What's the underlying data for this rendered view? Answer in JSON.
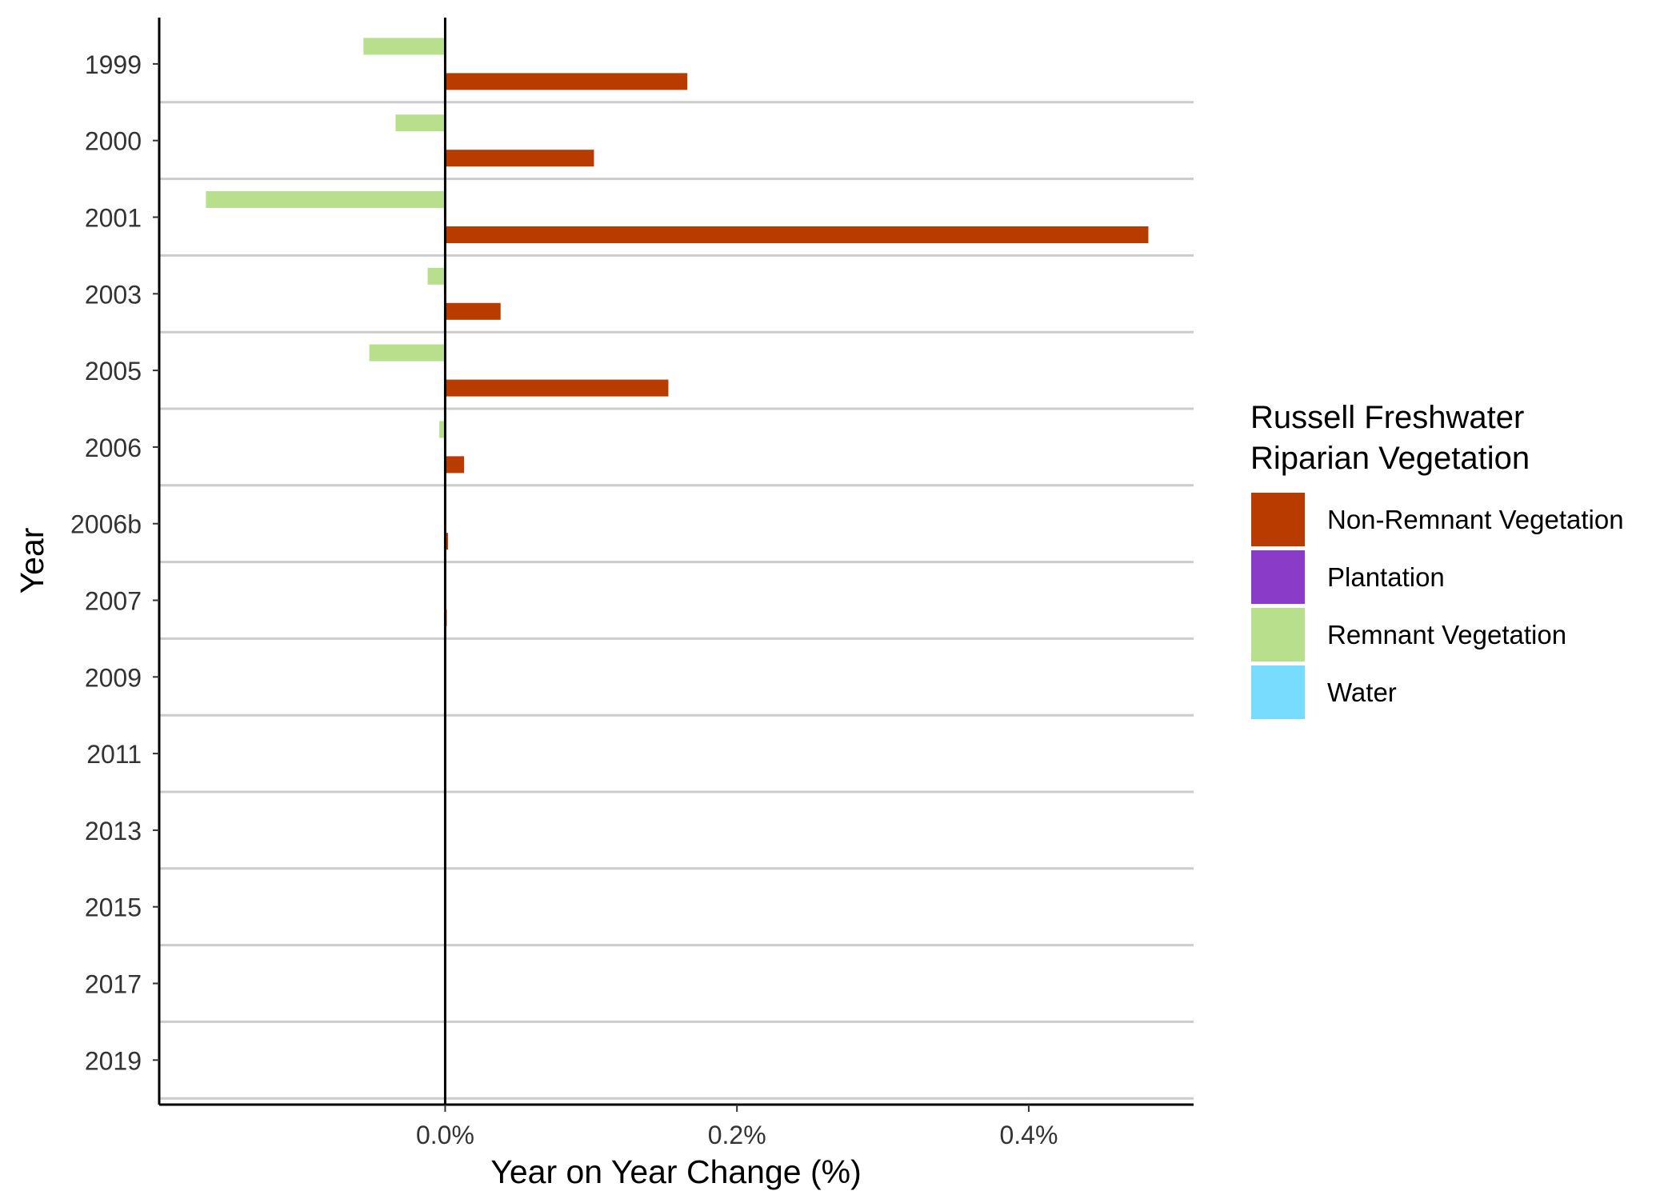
{
  "chart_data": {
    "type": "bar",
    "orientation": "horizontal",
    "title": "",
    "xlabel": "Year on Year Change (%)",
    "ylabel": "Year",
    "categories": [
      "1999",
      "2000",
      "2001",
      "2003",
      "2005",
      "2006",
      "2006b",
      "2007",
      "2009",
      "2011",
      "2013",
      "2015",
      "2017",
      "2019"
    ],
    "x_ticks": [
      0.0,
      0.2,
      0.4
    ],
    "x_tick_labels": [
      "0.0%",
      "0.2%",
      "0.4%"
    ],
    "xlim": [
      -0.196,
      0.513
    ],
    "grid": "horizontal separators between categories",
    "legend": {
      "title": "Russell Freshwater Riparian Vegetation",
      "title_lines": [
        "Russell Freshwater",
        "Riparian Vegetation"
      ],
      "placement": "right",
      "entries": [
        {
          "name": "Non-Remnant Vegetation",
          "color": "#B83C00"
        },
        {
          "name": "Plantation",
          "color": "#8A3CC8"
        },
        {
          "name": "Remnant Vegetation",
          "color": "#B8E08C"
        },
        {
          "name": "Water",
          "color": "#78DCFF"
        }
      ]
    },
    "series": [
      {
        "name": "Remnant Vegetation",
        "color": "#B8E08C",
        "values": [
          -0.056,
          -0.034,
          -0.164,
          -0.012,
          -0.052,
          -0.004,
          0.0,
          0.0,
          0.0,
          0.0,
          0.0,
          0.0,
          0.0,
          0.0
        ]
      },
      {
        "name": "Non-Remnant Vegetation",
        "color": "#B83C00",
        "values": [
          0.166,
          0.102,
          0.482,
          0.038,
          0.153,
          0.013,
          0.002,
          0.001,
          0.0,
          0.0,
          0.0,
          0.0,
          0.0,
          0.0
        ]
      }
    ]
  }
}
